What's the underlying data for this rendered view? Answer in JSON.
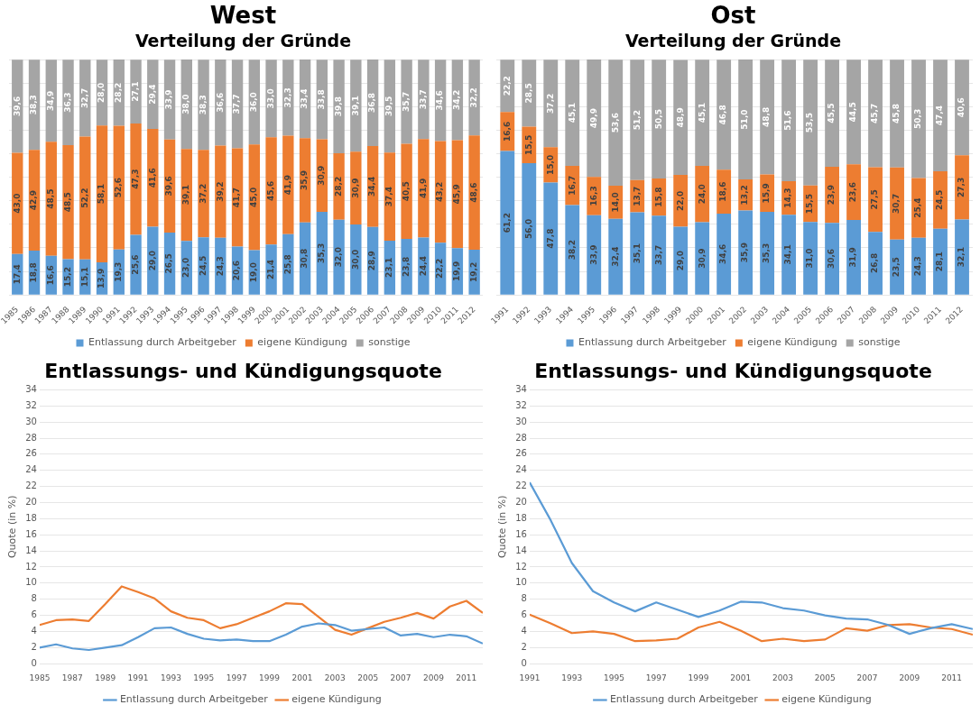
{
  "chart_data": [
    {
      "type": "bar",
      "title": "West",
      "subtitle": "Verteilung der Gründe",
      "stacked": true,
      "legend": "bottom",
      "grid": "y",
      "tick_labels": "x",
      "categories": [
        "1985",
        "1986",
        "1987",
        "1988",
        "1989",
        "1990",
        "1991",
        "1992",
        "1993",
        "1994",
        "1995",
        "1996",
        "1997",
        "1998",
        "1999",
        "2000",
        "2001",
        "2002",
        "2003",
        "2004",
        "2005",
        "2006",
        "2007",
        "2008",
        "2009",
        "2010",
        "2011",
        "2012"
      ],
      "series": [
        {
          "name": "Entlassung durch Arbeitgeber",
          "color": "#5b9bd5",
          "values": [
            17.4,
            18.8,
            16.6,
            15.2,
            15.1,
            13.9,
            19.3,
            25.6,
            29.0,
            26.5,
            23.0,
            24.5,
            24.3,
            20.6,
            19.0,
            21.4,
            25.8,
            30.8,
            35.3,
            32.0,
            30.0,
            28.9,
            23.1,
            23.8,
            24.4,
            22.2,
            19.9,
            19.2
          ],
          "value_labels": [
            "17,4",
            "18,8",
            "16,6",
            "15,2",
            "15,1",
            "13,9",
            "19,3",
            "25,6",
            "29,0",
            "26,5",
            "23,0",
            "24,5",
            "24,3",
            "20,6",
            "19,0",
            "21,4",
            "25,8",
            "30,8",
            "35,3",
            "32,0",
            "30,0",
            "28,9",
            "23,1",
            "23,8",
            "24,4",
            "22,2",
            "19,9",
            "19,2"
          ]
        },
        {
          "name": "eigene Kündigung",
          "color": "#ed7d31",
          "values": [
            43.0,
            42.9,
            48.5,
            48.5,
            52.2,
            58.1,
            52.6,
            47.3,
            41.6,
            39.6,
            39.1,
            37.2,
            39.2,
            41.7,
            45.0,
            45.6,
            41.9,
            35.9,
            30.9,
            28.2,
            30.9,
            34.4,
            37.4,
            40.5,
            41.9,
            43.2,
            45.9,
            48.6
          ],
          "value_labels": [
            "43,0",
            "42,9",
            "48,5",
            "48,5",
            "52,2",
            "58,1",
            "52,6",
            "47,3",
            "41,6",
            "39,6",
            "39,1",
            "37,2",
            "39,2",
            "41,7",
            "45,0",
            "45,6",
            "41,9",
            "35,9",
            "30,9",
            "28,2",
            "30,9",
            "34,4",
            "37,4",
            "40,5",
            "41,9",
            "43,2",
            "45,9",
            "48,6"
          ]
        },
        {
          "name": "sonstige",
          "color": "#a5a5a5",
          "values": [
            39.6,
            38.3,
            34.9,
            36.3,
            32.7,
            28.0,
            28.2,
            27.1,
            29.4,
            33.9,
            38.0,
            38.3,
            36.6,
            37.7,
            36.0,
            33.0,
            32.3,
            33.4,
            33.8,
            39.8,
            39.1,
            36.8,
            39.5,
            35.7,
            33.7,
            34.6,
            34.2,
            32.2
          ],
          "value_labels": [
            "39,6",
            "38,3",
            "34,9",
            "36,3",
            "32,7",
            "28,0",
            "28,2",
            "27,1",
            "29,4",
            "33,9",
            "38,0",
            "38,3",
            "36,6",
            "37,7",
            "36,0",
            "33,0",
            "32,3",
            "33,4",
            "33,8",
            "39,8",
            "39,1",
            "36,8",
            "39,5",
            "35,7",
            "33,7",
            "34,6",
            "34,2",
            "32,2"
          ]
        }
      ]
    },
    {
      "type": "bar",
      "title": "Ost",
      "subtitle": "Verteilung der Gründe",
      "stacked": true,
      "legend": "bottom",
      "grid": "y",
      "tick_labels": "x",
      "categories": [
        "1991",
        "1992",
        "1993",
        "1994",
        "1995",
        "1996",
        "1997",
        "1998",
        "1999",
        "2000",
        "2001",
        "2002",
        "2003",
        "2004",
        "2005",
        "2006",
        "2007",
        "2008",
        "2009",
        "2010",
        "2011",
        "2012"
      ],
      "series": [
        {
          "name": "Entlassung durch Arbeitgeber",
          "color": "#5b9bd5",
          "values": [
            61.2,
            56.0,
            47.8,
            38.2,
            33.9,
            32.4,
            35.1,
            33.7,
            29.0,
            30.9,
            34.6,
            35.9,
            35.3,
            34.1,
            31.0,
            30.6,
            31.9,
            26.8,
            23.5,
            24.3,
            28.1,
            32.1
          ],
          "value_labels": [
            "61,2",
            "56,0",
            "47,8",
            "38,2",
            "33,9",
            "32,4",
            "35,1",
            "33,7",
            "29,0",
            "30,9",
            "34,6",
            "35,9",
            "35,3",
            "34,1",
            "31,0",
            "30,6",
            "31,9",
            "26,8",
            "23,5",
            "24,3",
            "28,1",
            "32,1"
          ]
        },
        {
          "name": "eigene Kündigung",
          "color": "#ed7d31",
          "values": [
            16.6,
            15.5,
            15.0,
            16.7,
            16.3,
            14.0,
            13.7,
            15.8,
            22.0,
            24.0,
            18.6,
            13.2,
            15.9,
            14.3,
            15.5,
            23.9,
            23.6,
            27.5,
            30.7,
            25.4,
            24.5,
            27.3
          ],
          "value_labels": [
            "16,6",
            "15,5",
            "15,0",
            "16,7",
            "16,3",
            "14,0",
            "13,7",
            "15,8",
            "22,0",
            "24,0",
            "18,6",
            "13,2",
            "15,9",
            "14,3",
            "15,5",
            "23,9",
            "23,6",
            "27,5",
            "30,7",
            "25,4",
            "24,5",
            "27,3"
          ]
        },
        {
          "name": "sonstige",
          "color": "#a5a5a5",
          "values": [
            22.2,
            28.5,
            37.2,
            45.1,
            49.9,
            53.6,
            51.2,
            50.5,
            48.9,
            45.1,
            46.8,
            51.0,
            48.8,
            51.6,
            53.5,
            45.5,
            44.5,
            45.7,
            45.8,
            50.3,
            47.4,
            40.6
          ],
          "value_labels": [
            "22,2",
            "28,5",
            "37,2",
            "45,1",
            "49,9",
            "53,6",
            "51,2",
            "50,5",
            "48,9",
            "45,1",
            "46,8",
            "51,0",
            "48,8",
            "51,6",
            "53,5",
            "45,5",
            "44,5",
            "45,7",
            "45,8",
            "50,3",
            "47,4",
            "40,6"
          ]
        }
      ]
    },
    {
      "type": "line",
      "title": "Entlassungs- und Kündigungsquote",
      "ylabel": "Quote (in %)",
      "legend": "bottom",
      "grid": "y",
      "marker": "none",
      "line_style": "solid",
      "x": [
        1985,
        1986,
        1987,
        1988,
        1989,
        1990,
        1991,
        1992,
        1993,
        1994,
        1995,
        1996,
        1997,
        1998,
        1999,
        2000,
        2001,
        2002,
        2003,
        2004,
        2005,
        2006,
        2007,
        2008,
        2009,
        2010,
        2011,
        2012
      ],
      "xlim": [
        1985,
        2012
      ],
      "xticks": [
        1985,
        1987,
        1989,
        1991,
        1993,
        1995,
        1997,
        1999,
        2001,
        2003,
        2005,
        2007,
        2009,
        2011
      ],
      "ylim": [
        0,
        34
      ],
      "yticks": [
        0,
        2,
        4,
        6,
        8,
        10,
        12,
        14,
        16,
        18,
        20,
        22,
        24,
        26,
        28,
        30,
        32,
        34
      ],
      "series": [
        {
          "name": "Entlassung durch Arbeitgeber",
          "color": "#5b9bd5",
          "values": [
            2.0,
            2.4,
            1.9,
            1.7,
            2.0,
            2.3,
            3.3,
            4.4,
            4.5,
            3.7,
            3.1,
            2.9,
            3.0,
            2.8,
            2.8,
            3.6,
            4.6,
            5.0,
            4.8,
            4.1,
            4.3,
            4.5,
            3.5,
            3.7,
            3.3,
            3.6,
            3.4,
            2.5
          ]
        },
        {
          "name": "eigene Kündigung",
          "color": "#ed7d31",
          "values": [
            4.8,
            5.4,
            5.5,
            5.3,
            7.4,
            9.6,
            8.9,
            8.1,
            6.5,
            5.7,
            5.4,
            4.4,
            4.9,
            5.7,
            6.5,
            7.5,
            7.4,
            5.8,
            4.2,
            3.6,
            4.4,
            5.2,
            5.7,
            6.3,
            5.6,
            7.1,
            7.8,
            6.3
          ]
        }
      ]
    },
    {
      "type": "line",
      "title": "Entlassungs- und Kündigungsquote",
      "ylabel": "Quote (in %)",
      "legend": "bottom",
      "grid": "y",
      "marker": "none",
      "line_style": "solid",
      "x": [
        1991,
        1992,
        1993,
        1994,
        1995,
        1996,
        1997,
        1998,
        1999,
        2000,
        2001,
        2002,
        2003,
        2004,
        2005,
        2006,
        2007,
        2008,
        2009,
        2010,
        2011,
        2012
      ],
      "xlim": [
        1991,
        2012
      ],
      "xticks": [
        1991,
        1993,
        1995,
        1997,
        1999,
        2001,
        2003,
        2005,
        2007,
        2009,
        2011
      ],
      "ylim": [
        0,
        34
      ],
      "yticks": [
        0,
        2,
        4,
        6,
        8,
        10,
        12,
        14,
        16,
        18,
        20,
        22,
        24,
        26,
        28,
        30,
        32,
        34
      ],
      "series": [
        {
          "name": "Entlassung durch Arbeitgeber",
          "color": "#5b9bd5",
          "values": [
            22.5,
            17.8,
            12.5,
            9.0,
            7.6,
            6.5,
            7.6,
            6.7,
            5.8,
            6.6,
            7.7,
            7.6,
            6.9,
            6.6,
            6.0,
            5.6,
            5.5,
            4.8,
            3.7,
            4.4,
            4.9,
            4.3
          ]
        },
        {
          "name": "eigene Kündigung",
          "color": "#ed7d31",
          "values": [
            6.1,
            5.0,
            3.8,
            4.0,
            3.7,
            2.8,
            2.9,
            3.1,
            4.5,
            5.2,
            4.1,
            2.8,
            3.1,
            2.8,
            3.0,
            4.4,
            4.1,
            4.8,
            4.9,
            4.5,
            4.3,
            3.6
          ]
        }
      ]
    }
  ]
}
